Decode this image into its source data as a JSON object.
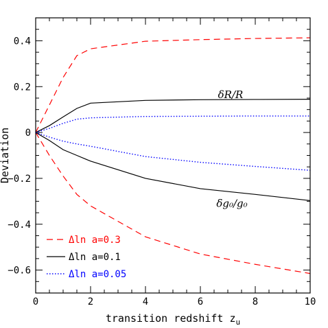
{
  "chart_data": {
    "type": "line",
    "xlabel": "transition redshift z",
    "xlabel_subscript": "u",
    "ylabel": "Deviation",
    "xlim": [
      0,
      10
    ],
    "ylim": [
      -0.7,
      0.5
    ],
    "x_ticks": [
      0,
      2,
      4,
      6,
      8,
      10
    ],
    "x_tick_labels": [
      "0",
      "2",
      "4",
      "6",
      "8",
      "10"
    ],
    "y_ticks": [
      -0.6,
      -0.4,
      -0.2,
      0,
      0.2,
      0.4
    ],
    "y_tick_labels": [
      "−0.6",
      "−0.4",
      "−0.2",
      "0",
      "0.2",
      "0.4"
    ],
    "x_minor_step": 0.5,
    "y_minor_step": 0.05,
    "grid": false,
    "legend_position": "bottom-left",
    "annotations": [
      {
        "text": "δR/R",
        "x": 7.1,
        "y": 0.165
      },
      {
        "text": "δg₀/g₀",
        "x": 7.15,
        "y": -0.31
      }
    ],
    "series": [
      {
        "name": "Δln a=0.3",
        "group": "δR/R",
        "color": "#ff0000",
        "style": "dashed",
        "x": [
          0,
          0.5,
          1,
          1.5,
          2,
          4,
          6,
          8,
          10
        ],
        "y": [
          0,
          0.12,
          0.24,
          0.335,
          0.365,
          0.398,
          0.405,
          0.41,
          0.413
        ]
      },
      {
        "name": "Δln a=0.1",
        "group": "δR/R",
        "color": "#000000",
        "style": "solid",
        "x": [
          0,
          0.5,
          1,
          1.5,
          2,
          4,
          6,
          8,
          10
        ],
        "y": [
          0,
          0.03,
          0.068,
          0.105,
          0.128,
          0.14,
          0.143,
          0.144,
          0.145
        ]
      },
      {
        "name": "Δln a=0.05",
        "group": "δR/R",
        "color": "#0000ff",
        "style": "dotted",
        "x": [
          0,
          0.5,
          1,
          1.5,
          2,
          4,
          6,
          8,
          10
        ],
        "y": [
          0,
          0.018,
          0.04,
          0.058,
          0.064,
          0.07,
          0.071,
          0.072,
          0.072
        ]
      },
      {
        "name": "Δln a=0.3",
        "group": "δg₀/g₀",
        "color": "#ff0000",
        "style": "dashed",
        "x": [
          0,
          0.5,
          1,
          1.5,
          2,
          4,
          6,
          8,
          10
        ],
        "y": [
          0,
          -0.1,
          -0.19,
          -0.27,
          -0.32,
          -0.455,
          -0.53,
          -0.575,
          -0.615
        ]
      },
      {
        "name": "Δln a=0.1",
        "group": "δg₀/g₀",
        "color": "#000000",
        "style": "solid",
        "x": [
          0,
          0.5,
          1,
          1.5,
          2,
          4,
          6,
          8,
          10
        ],
        "y": [
          0,
          -0.035,
          -0.075,
          -0.1,
          -0.125,
          -0.2,
          -0.245,
          -0.27,
          -0.297
        ]
      },
      {
        "name": "Δln a=0.05",
        "group": "δg₀/g₀",
        "color": "#0000ff",
        "style": "dotted",
        "x": [
          0,
          0.5,
          1,
          1.5,
          2,
          4,
          6,
          8,
          10
        ],
        "y": [
          0,
          -0.02,
          -0.038,
          -0.05,
          -0.06,
          -0.105,
          -0.13,
          -0.148,
          -0.165
        ]
      }
    ],
    "legend": [
      {
        "label": "Δln a=0.3",
        "color": "#ff0000",
        "style": "dashed"
      },
      {
        "label": "Δln a=0.1",
        "color": "#000000",
        "style": "solid"
      },
      {
        "label": "Δln a=0.05",
        "color": "#0000ff",
        "style": "dotted"
      }
    ]
  }
}
